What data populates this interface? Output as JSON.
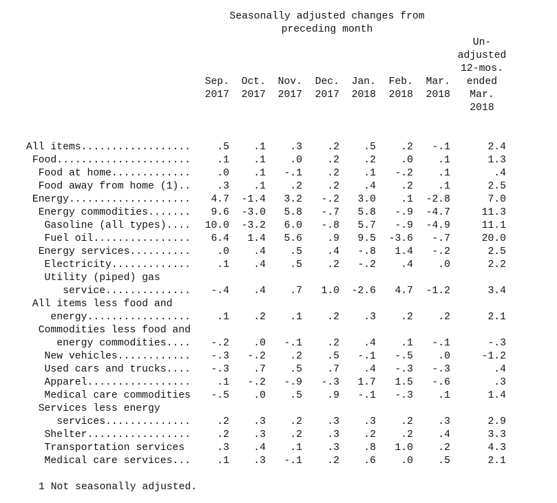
{
  "header": {
    "title_lines": [
      "Seasonally adjusted changes from",
      "preceding month"
    ],
    "months": [
      {
        "month": "Sep.",
        "year": "2017"
      },
      {
        "month": "Oct.",
        "year": "2017"
      },
      {
        "month": "Nov.",
        "year": "2017"
      },
      {
        "month": "Dec.",
        "year": "2017"
      },
      {
        "month": "Jan.",
        "year": "2018"
      },
      {
        "month": "Feb.",
        "year": "2018"
      },
      {
        "month": "Mar.",
        "year": "2018"
      }
    ],
    "unadjusted_lines": [
      "Un-",
      "adjusted",
      "12-mos.",
      "ended",
      "Mar.",
      "2018"
    ]
  },
  "rows": [
    {
      "label": [
        "All items.................."
      ],
      "values": [
        ".5",
        ".1",
        ".3",
        ".2",
        ".5",
        ".2",
        "-.1",
        "2.4"
      ]
    },
    {
      "label": [
        "Food......................"
      ],
      "values": [
        ".1",
        ".1",
        ".0",
        ".2",
        ".2",
        ".0",
        ".1",
        "1.3"
      ]
    },
    {
      "label": [
        "Food at home............."
      ],
      "values": [
        ".0",
        ".1",
        "-.1",
        ".2",
        ".1",
        "-.2",
        ".1",
        ".4"
      ]
    },
    {
      "label": [
        "Food away from home (1).."
      ],
      "values": [
        ".3",
        ".1",
        ".2",
        ".2",
        ".4",
        ".2",
        ".1",
        "2.5"
      ]
    },
    {
      "label": [
        "Energy...................."
      ],
      "values": [
        "4.7",
        "-1.4",
        "3.2",
        "-.2",
        "3.0",
        ".1",
        "-2.8",
        "7.0"
      ]
    },
    {
      "label": [
        "Energy commodities......."
      ],
      "values": [
        "9.6",
        "-3.0",
        "5.8",
        "-.7",
        "5.8",
        "-.9",
        "-4.7",
        "11.3"
      ]
    },
    {
      "label": [
        "Gasoline (all types)...."
      ],
      "values": [
        "10.0",
        "-3.2",
        "6.0",
        "-.8",
        "5.7",
        "-.9",
        "-4.9",
        "11.1"
      ]
    },
    {
      "label": [
        "Fuel oil................"
      ],
      "values": [
        "6.4",
        "1.4",
        "5.6",
        ".9",
        "9.5",
        "-3.6",
        "-.7",
        "20.0"
      ]
    },
    {
      "label": [
        "Energy services.........."
      ],
      "values": [
        ".0",
        ".4",
        ".5",
        ".4",
        "-.8",
        "1.4",
        "-.2",
        "2.5"
      ]
    },
    {
      "label": [
        "Electricity............."
      ],
      "values": [
        ".1",
        ".4",
        ".5",
        ".2",
        "-.2",
        ".4",
        ".0",
        "2.2"
      ]
    },
    {
      "label": [
        "Utility (piped) gas",
        "service.............."
      ],
      "values": [
        "-.4",
        ".4",
        ".7",
        "1.0",
        "-2.6",
        "4.7",
        "-1.2",
        "3.4"
      ]
    },
    {
      "label": [
        "All items less food and",
        "energy................."
      ],
      "values": [
        ".1",
        ".2",
        ".1",
        ".2",
        ".3",
        ".2",
        ".2",
        "2.1"
      ]
    },
    {
      "label": [
        "Commodities less food and",
        "energy commodities...."
      ],
      "values": [
        "-.2",
        ".0",
        "-.1",
        ".2",
        ".4",
        ".1",
        "-.1",
        "-.3"
      ]
    },
    {
      "label": [
        "New vehicles............"
      ],
      "values": [
        "-.3",
        "-.2",
        ".2",
        ".5",
        "-.1",
        "-.5",
        ".0",
        "-1.2"
      ]
    },
    {
      "label": [
        "Used cars and trucks...."
      ],
      "values": [
        "-.3",
        ".7",
        ".5",
        ".7",
        ".4",
        "-.3",
        "-.3",
        ".4"
      ]
    },
    {
      "label": [
        "Apparel................."
      ],
      "values": [
        ".1",
        "-.2",
        "-.9",
        "-.3",
        "1.7",
        "1.5",
        "-.6",
        ".3"
      ]
    },
    {
      "label": [
        "Medical care commodities"
      ],
      "values": [
        "-.5",
        ".0",
        ".5",
        ".9",
        "-.1",
        "-.3",
        ".1",
        "1.4"
      ]
    },
    {
      "label": [
        "Services less energy",
        "services.............."
      ],
      "values": [
        ".2",
        ".3",
        ".2",
        ".3",
        ".3",
        ".2",
        ".3",
        "2.9"
      ]
    },
    {
      "label": [
        "Shelter................."
      ],
      "values": [
        ".2",
        ".3",
        ".2",
        ".3",
        ".2",
        ".2",
        ".4",
        "3.3"
      ]
    },
    {
      "label": [
        "Transportation services"
      ],
      "values": [
        ".3",
        ".4",
        ".1",
        ".3",
        ".8",
        "1.0",
        ".2",
        "4.3"
      ]
    },
    {
      "label": [
        "Medical care services..."
      ],
      "values": [
        ".1",
        ".3",
        "-.1",
        ".2",
        ".6",
        ".0",
        ".5",
        "2.1"
      ]
    }
  ],
  "footnote": "1 Not seasonally adjusted."
}
